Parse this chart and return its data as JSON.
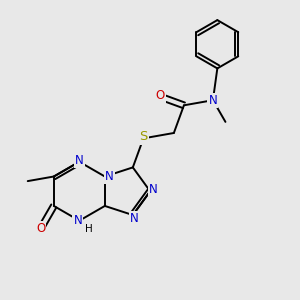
{
  "bg_color": "#e8e8e8",
  "bond_color": "#000000",
  "N_color": "#0000cc",
  "O_color": "#cc0000",
  "S_color": "#999900",
  "font_size": 8.5,
  "line_width": 1.4,
  "fig_size": [
    3.0,
    3.0
  ],
  "dpi": 100,
  "xlim": [
    0,
    10
  ],
  "ylim": [
    0,
    10
  ]
}
